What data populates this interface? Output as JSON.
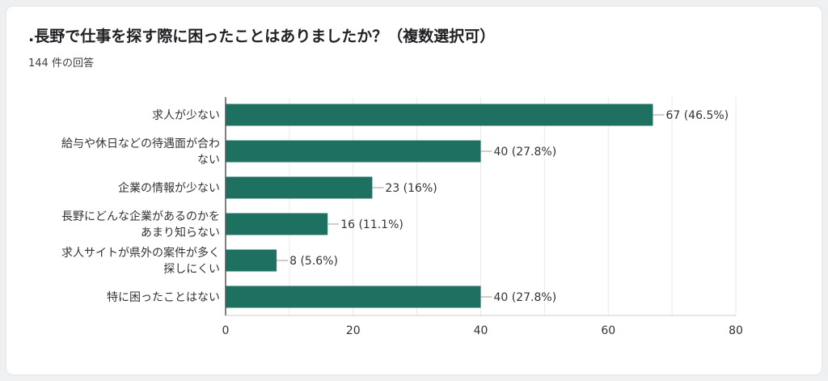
{
  "survey": {
    "question": ".長野で仕事を探す際に困ったことはありましたか？（複数選択可）",
    "response_count": "144 件の回答"
  },
  "colors": {
    "bar": "#1e7061",
    "grid": "#e9e9e9",
    "axis": "#9e9e9e",
    "text": "#333333"
  },
  "chart_data": {
    "type": "bar",
    "orientation": "horizontal",
    "title": ".長野で仕事を探す際に困ったことはありましたか？（複数選択可）",
    "subtitle": "144 件の回答",
    "xlabel": "",
    "ylabel": "",
    "xlim": [
      0,
      80
    ],
    "xticks": [
      0,
      20,
      40,
      60,
      80
    ],
    "grid": true,
    "legend": "none",
    "categories": [
      [
        "求人が少ない"
      ],
      [
        "給与や休日などの待遇面が合わ",
        "ない"
      ],
      [
        "企業の情報が少ない"
      ],
      [
        "長野にどんな企業があるのかを",
        "あまり知らない"
      ],
      [
        "求人サイトが県外の案件が多く",
        "探しにくい"
      ],
      [
        "特に困ったことはない"
      ]
    ],
    "values": [
      67,
      40,
      23,
      16,
      8,
      40
    ],
    "data_labels": [
      "67 (46.5%)",
      "40 (27.8%)",
      "23 (16%)",
      "16 (11.1%)",
      "8 (5.6%)",
      "40 (27.8%)"
    ]
  }
}
